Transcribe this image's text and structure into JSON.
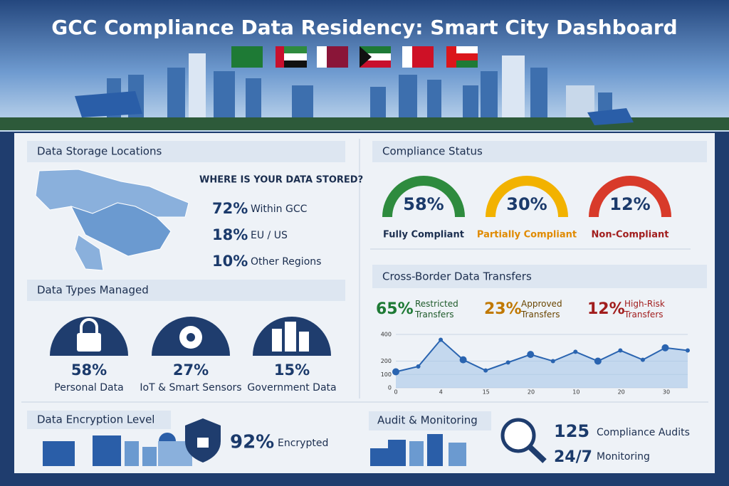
{
  "header": {
    "title": "GCC Compliance Data Residency: Smart City Dashboard"
  },
  "storage": {
    "title": "Data Storage Locations",
    "question": "WHERE IS YOUR DATA STORED?",
    "items": [
      {
        "value": "72%",
        "label": "Within GCC"
      },
      {
        "value": "18%",
        "label": "EU / US"
      },
      {
        "value": "10%",
        "label": "Other Regions"
      }
    ]
  },
  "types": {
    "title": "Data Types Managed",
    "items": [
      {
        "value": "58%",
        "label": "Personal Data"
      },
      {
        "value": "27%",
        "label": "IoT & Smart Sensors"
      },
      {
        "value": "15%",
        "label": "Government Data"
      }
    ]
  },
  "encryption": {
    "title": "Data Encryption Level",
    "value": "92%",
    "label": "Encrypted"
  },
  "compliance": {
    "title": "Compliance Status",
    "items": [
      {
        "value": "58%",
        "label": "Fully Compliant"
      },
      {
        "value": "30%",
        "label": "Partially Compliant"
      },
      {
        "value": "12%",
        "label": "Non-Compliant"
      }
    ]
  },
  "transfers": {
    "title": "Cross-Border Data Transfers",
    "items": [
      {
        "value": "65%",
        "label": "Restricted Transfers"
      },
      {
        "value": "23%",
        "label": "Approved Transfers"
      },
      {
        "value": "12%",
        "label": "High-Risk Transfers"
      }
    ]
  },
  "audit": {
    "title": "Audit & Monitoring",
    "items": [
      {
        "value": "125",
        "label": "Compliance Audits"
      },
      {
        "value": "24/7",
        "label": "Monitoring"
      }
    ]
  },
  "chart_data": {
    "type": "line",
    "color": "#2a64b0",
    "values": [
      120,
      160,
      360,
      210,
      130,
      190,
      250,
      200,
      270,
      200,
      280,
      210,
      300,
      280
    ],
    "xtick_labels": [
      "0",
      "4",
      "15",
      "20",
      "10",
      "20",
      "30"
    ],
    "ylim": [
      0,
      400
    ],
    "yticks": [
      0,
      100,
      200,
      400
    ],
    "grid": true
  }
}
